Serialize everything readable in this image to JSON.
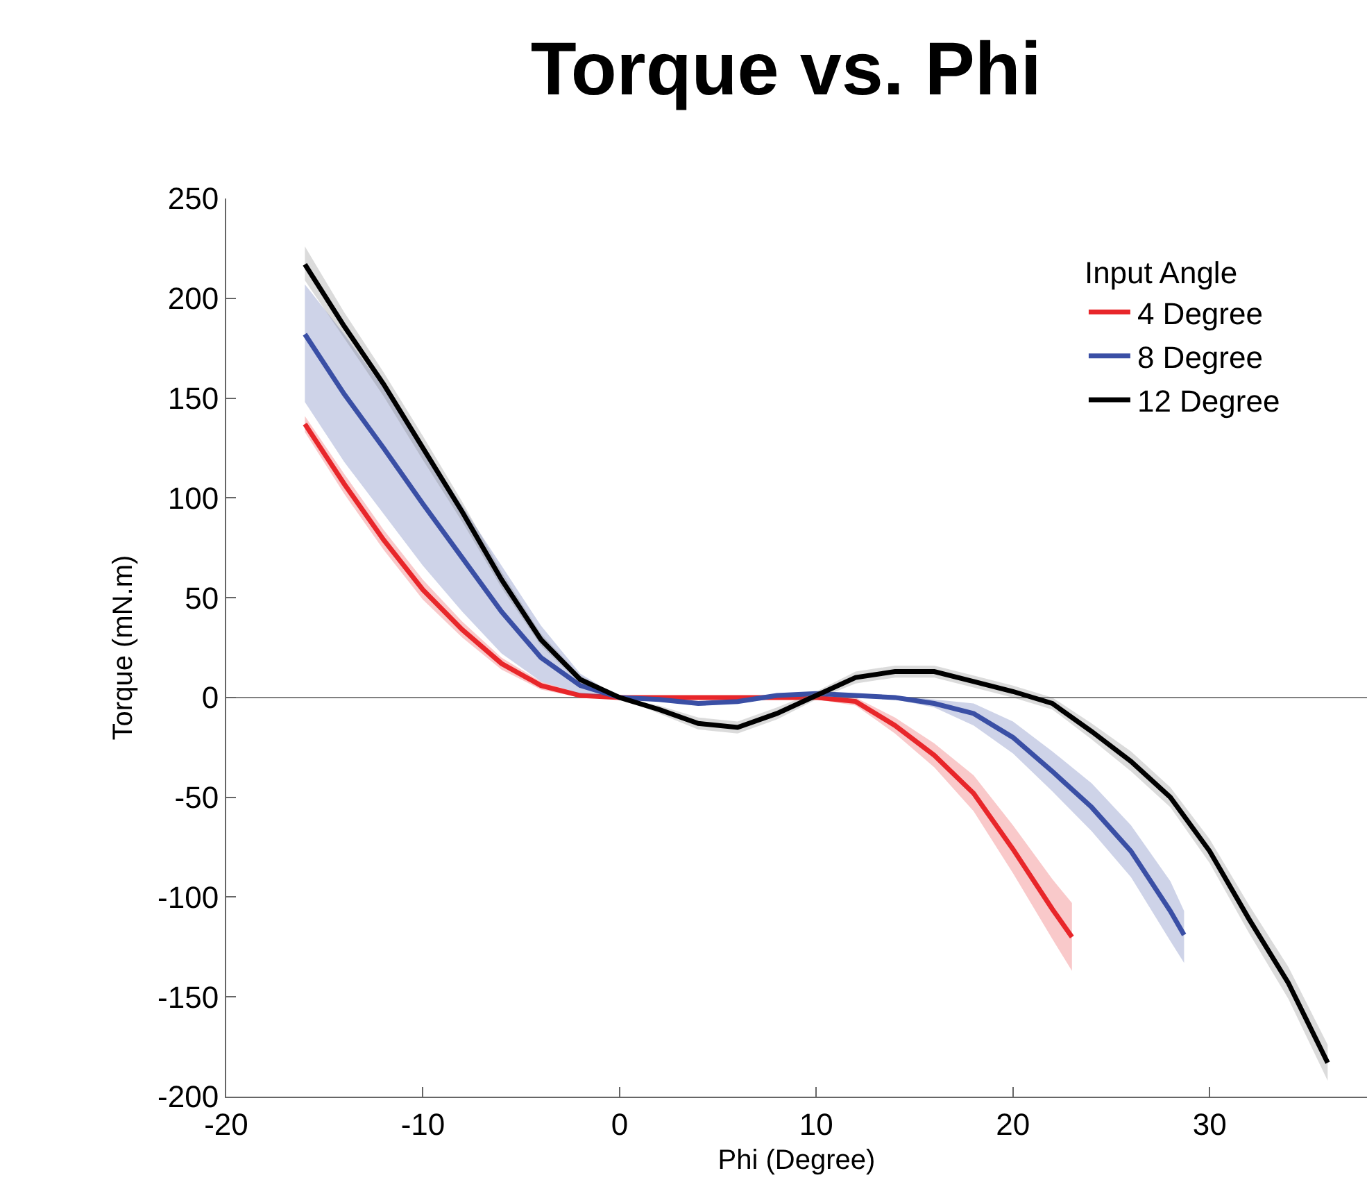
{
  "chart_data": {
    "type": "line",
    "title": "Torque vs. Phi",
    "xlabel": "Phi (Degree)",
    "ylabel": "Torque (mN.m)",
    "legend_title": "Input Angle",
    "xlim": [
      -20,
      38
    ],
    "xticks": [
      -20,
      -10,
      0,
      10,
      20,
      30
    ],
    "ylim": [
      -200,
      250
    ],
    "yticks": [
      -200,
      -150,
      -100,
      -50,
      0,
      50,
      100,
      150,
      200,
      250
    ],
    "grid": false,
    "legend": "top right",
    "marker": "none",
    "line_style": "solid",
    "ref_lines": [
      {
        "axis": "y",
        "value": 0,
        "color": "#808080"
      }
    ],
    "series": [
      {
        "name": "4 Degree",
        "color": "#e8262a",
        "x": [
          -16,
          -14,
          -12,
          -10,
          -8,
          -6,
          -4,
          -2,
          0,
          2,
          4,
          6,
          8,
          10,
          12,
          14,
          16,
          18,
          20,
          22,
          23
        ],
        "values": [
          137,
          107,
          79,
          54,
          34,
          17,
          6,
          1,
          0,
          0,
          0,
          0,
          0,
          0,
          -2,
          -14,
          -29,
          -48,
          -76,
          -106,
          -120
        ],
        "lower": [
          133,
          102,
          74,
          49,
          30,
          14,
          4,
          0,
          0,
          0,
          0,
          0,
          0,
          -1,
          -4,
          -18,
          -35,
          -57,
          -88,
          -121,
          -137
        ],
        "upper": [
          141,
          112,
          84,
          59,
          38,
          20,
          8,
          2,
          0,
          0,
          0,
          0,
          0,
          1,
          0,
          -10,
          -23,
          -39,
          -64,
          -91,
          -103
        ]
      },
      {
        "name": "8 Degree",
        "color": "#3a4fa5",
        "x": [
          -16,
          -14,
          -12,
          -10,
          -8,
          -6,
          -4,
          -2,
          0,
          2,
          4,
          6,
          8,
          10,
          12,
          14,
          16,
          18,
          20,
          22,
          24,
          26,
          28,
          28.7
        ],
        "values": [
          182,
          152,
          125,
          97,
          70,
          43,
          20,
          6,
          0,
          -1,
          -3,
          -2,
          1,
          2,
          1,
          0,
          -3,
          -8,
          -20,
          -37,
          -55,
          -77,
          -107,
          -119
        ],
        "lower": [
          148,
          118,
          92,
          66,
          43,
          22,
          8,
          2,
          0,
          -2,
          -4,
          -3,
          0,
          1,
          0,
          -1,
          -5,
          -14,
          -28,
          -47,
          -67,
          -90,
          -122,
          -133
        ],
        "upper": [
          207,
          182,
          155,
          126,
          96,
          66,
          36,
          12,
          0,
          0,
          -2,
          -1,
          2,
          3,
          2,
          1,
          -1,
          -3,
          -12,
          -27,
          -43,
          -64,
          -92,
          -107
        ]
      },
      {
        "name": "12 Degree",
        "color": "#000000",
        "x": [
          -16,
          -14,
          -12,
          -10,
          -8,
          -6,
          -4,
          -2,
          0,
          2,
          4,
          6,
          8,
          10,
          12,
          14,
          16,
          18,
          20,
          22,
          24,
          26,
          28,
          30,
          32,
          34,
          36
        ],
        "values": [
          217,
          186,
          157,
          125,
          93,
          59,
          29,
          9,
          0,
          -6,
          -13,
          -15,
          -8,
          1,
          10,
          13,
          13,
          8,
          3,
          -3,
          -17,
          -32,
          -50,
          -77,
          -111,
          -143,
          -183
        ],
        "lower": [
          209,
          180,
          151,
          119,
          88,
          55,
          26,
          7,
          0,
          -8,
          -16,
          -18,
          -11,
          -1,
          7,
          10,
          10,
          5,
          0,
          -6,
          -21,
          -37,
          -55,
          -83,
          -118,
          -151,
          -192
        ],
        "upper": [
          226,
          193,
          163,
          131,
          98,
          63,
          32,
          11,
          0,
          -4,
          -10,
          -12,
          -5,
          3,
          13,
          16,
          16,
          11,
          6,
          0,
          -13,
          -27,
          -45,
          -71,
          -104,
          -135,
          -174
        ]
      }
    ]
  }
}
